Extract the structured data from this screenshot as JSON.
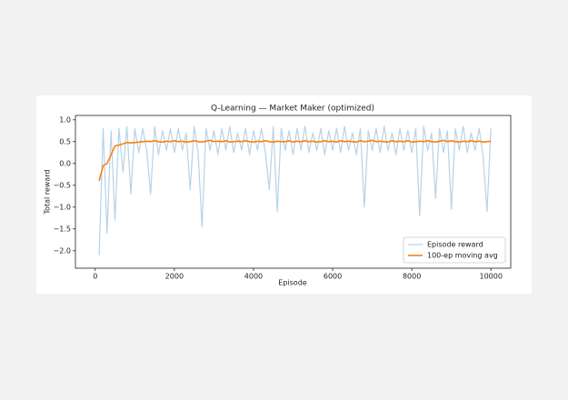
{
  "chart_data": {
    "type": "line",
    "title": "Q-Learning — Market Maker (optimized)",
    "x_label": "Episode",
    "y_label": "Total reward",
    "xlim": [
      -500,
      10500
    ],
    "ylim": [
      -2.4,
      1.1
    ],
    "xticks": [
      0,
      2000,
      4000,
      6000,
      8000,
      10000
    ],
    "yticks": [
      {
        "value": -2,
        "label": "−2.0"
      },
      {
        "value": -1.5,
        "label": "−1.5"
      },
      {
        "value": -1,
        "label": "−1.0"
      },
      {
        "value": -0.5,
        "label": "−0.5"
      },
      {
        "value": 0,
        "label": "0.0"
      },
      {
        "value": 0.5,
        "label": "0.5"
      },
      {
        "value": 1,
        "label": "1.0"
      }
    ],
    "legend": "lower right",
    "x": [
      100,
      200,
      300,
      400,
      500,
      600,
      700,
      800,
      900,
      1000,
      1100,
      1200,
      1300,
      1400,
      1500,
      1600,
      1700,
      1800,
      1900,
      2000,
      2100,
      2200,
      2300,
      2400,
      2500,
      2600,
      2700,
      2800,
      2900,
      3000,
      3100,
      3200,
      3300,
      3400,
      3500,
      3600,
      3700,
      3800,
      3900,
      4000,
      4100,
      4200,
      4300,
      4400,
      4500,
      4600,
      4700,
      4800,
      4900,
      5000,
      5100,
      5200,
      5300,
      5400,
      5500,
      5600,
      5700,
      5800,
      5900,
      6000,
      6100,
      6200,
      6300,
      6400,
      6500,
      6600,
      6700,
      6800,
      6900,
      7000,
      7100,
      7200,
      7300,
      7400,
      7500,
      7600,
      7700,
      7800,
      7900,
      8000,
      8100,
      8200,
      8300,
      8400,
      8500,
      8600,
      8700,
      8800,
      8900,
      9000,
      9100,
      9200,
      9300,
      9400,
      9500,
      9600,
      9700,
      9800,
      9900,
      10000
    ],
    "series": [
      {
        "name": "Episode reward",
        "color": "#b5d3e8",
        "width": 1.2,
        "values": [
          -2.1,
          0.8,
          -1.6,
          0.75,
          -1.3,
          0.8,
          -0.2,
          0.85,
          -0.7,
          0.8,
          0.25,
          0.8,
          0.3,
          -0.7,
          0.85,
          0.2,
          0.75,
          0.3,
          0.8,
          0.25,
          0.8,
          0.3,
          0.7,
          -0.6,
          0.85,
          0.25,
          -1.45,
          0.8,
          0.3,
          0.75,
          0.2,
          0.8,
          0.3,
          0.85,
          0.25,
          0.7,
          0.3,
          0.8,
          0.2,
          0.75,
          0.3,
          0.8,
          0.25,
          -0.6,
          0.85,
          -1.1,
          0.8,
          0.3,
          0.75,
          0.2,
          0.8,
          0.3,
          0.85,
          0.25,
          0.7,
          0.3,
          0.8,
          0.2,
          0.75,
          0.3,
          0.8,
          0.25,
          0.85,
          0.3,
          0.7,
          0.2,
          0.8,
          -1.0,
          0.75,
          0.3,
          0.8,
          0.25,
          0.85,
          0.3,
          0.7,
          0.2,
          0.8,
          0.3,
          0.75,
          0.25,
          0.8,
          -1.2,
          0.85,
          0.3,
          0.7,
          -0.8,
          0.8,
          0.25,
          0.75,
          -1.05,
          0.8,
          0.3,
          0.85,
          0.25,
          0.7,
          0.3,
          0.8,
          0.2,
          -1.1,
          0.8
        ]
      },
      {
        "name": "100-ep moving avg",
        "color": "#ff7f0e",
        "width": 1.6,
        "values": [
          -0.4,
          -0.05,
          0.0,
          0.2,
          0.4,
          0.42,
          0.45,
          0.48,
          0.47,
          0.48,
          0.49,
          0.5,
          0.51,
          0.5,
          0.52,
          0.5,
          0.49,
          0.51,
          0.5,
          0.52,
          0.5,
          0.51,
          0.49,
          0.5,
          0.52,
          0.5,
          0.49,
          0.51,
          0.53,
          0.5,
          0.51,
          0.5,
          0.52,
          0.49,
          0.5,
          0.51,
          0.5,
          0.52,
          0.5,
          0.49,
          0.51,
          0.5,
          0.52,
          0.5,
          0.49,
          0.51,
          0.5,
          0.5,
          0.52,
          0.49,
          0.51,
          0.5,
          0.52,
          0.5,
          0.51,
          0.49,
          0.5,
          0.52,
          0.5,
          0.51,
          0.49,
          0.52,
          0.5,
          0.51,
          0.5,
          0.49,
          0.52,
          0.5,
          0.51,
          0.53,
          0.5,
          0.51,
          0.5,
          0.49,
          0.52,
          0.5,
          0.51,
          0.5,
          0.52,
          0.49,
          0.5,
          0.51,
          0.5,
          0.52,
          0.5,
          0.49,
          0.51,
          0.53,
          0.5,
          0.52,
          0.5,
          0.49,
          0.51,
          0.5,
          0.52,
          0.5,
          0.51,
          0.49,
          0.5,
          0.51
        ]
      }
    ]
  }
}
